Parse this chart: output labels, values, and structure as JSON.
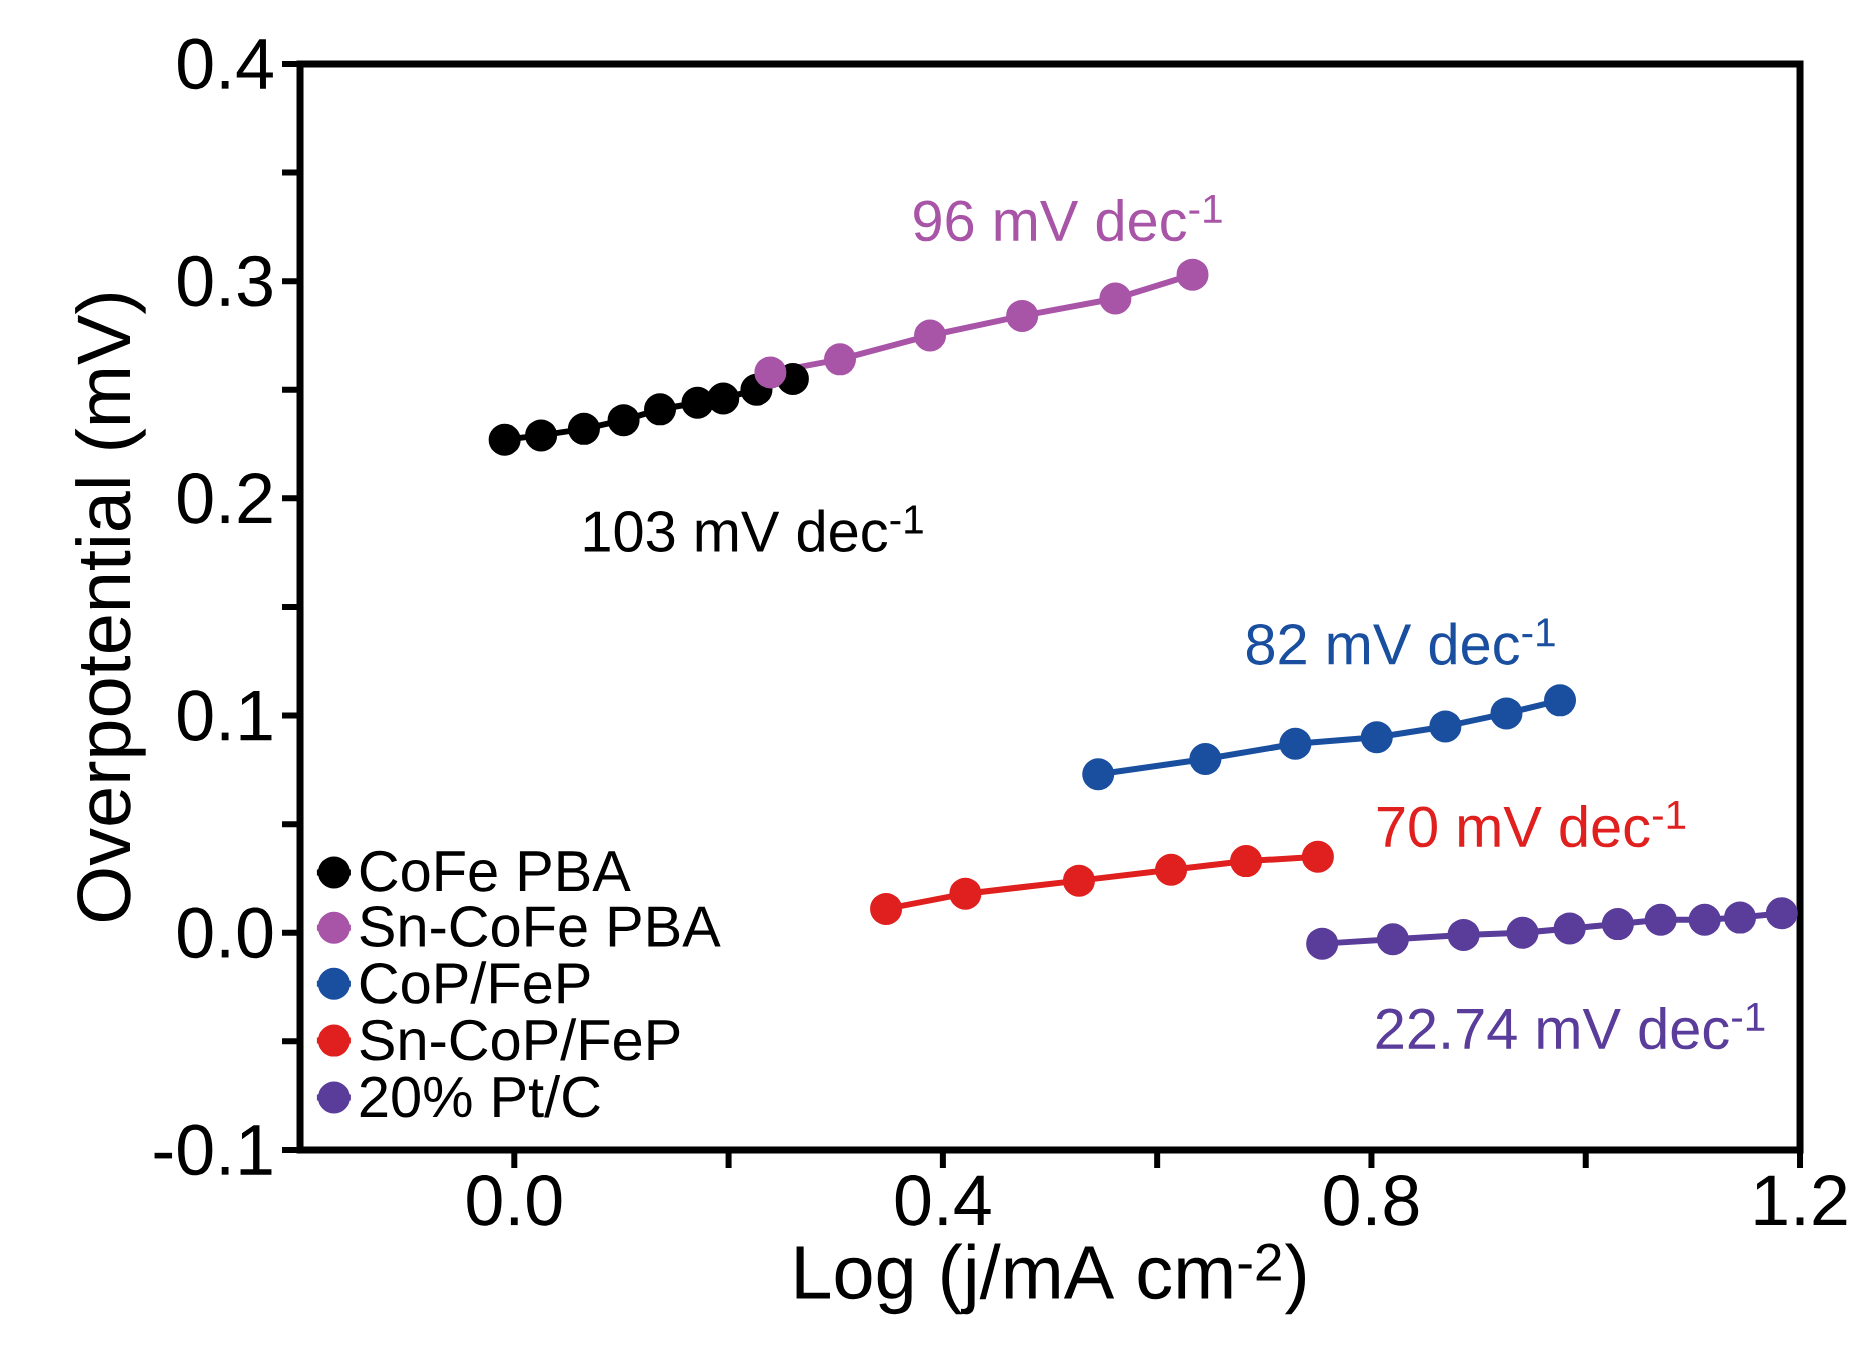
{
  "chart_data": {
    "type": "line",
    "xlabel": "Log (j/mA cm$^{-2}$)",
    "ylabel": "Overpotential (mV)",
    "xlim": [
      -0.2,
      1.2
    ],
    "ylim": [
      -0.1,
      0.4
    ],
    "xticks": [
      {
        "value": 0,
        "label": "0.0"
      },
      {
        "value": 0.2,
        "label": null
      },
      {
        "value": 0.4,
        "label": "0.4"
      },
      {
        "value": 0.6,
        "label": null
      },
      {
        "value": 0.8,
        "label": "0.8"
      },
      {
        "value": 1.0,
        "label": null
      },
      {
        "value": 1.2,
        "label": "1.2"
      }
    ],
    "yticks": [
      {
        "value": -0.1,
        "label": "-0.1"
      },
      {
        "value": -0.05,
        "label": null
      },
      {
        "value": 0,
        "label": "0.0"
      },
      {
        "value": 0.05,
        "label": null
      },
      {
        "value": 0.1,
        "label": "0.1"
      },
      {
        "value": 0.15,
        "label": null
      },
      {
        "value": 0.2,
        "label": "0.2"
      },
      {
        "value": 0.25,
        "label": null
      },
      {
        "value": 0.3,
        "label": "0.3"
      },
      {
        "value": 0.35,
        "label": null
      },
      {
        "value": 0.4,
        "label": "0.4"
      }
    ],
    "grid": false,
    "legend": "bottom left",
    "marker": "circle",
    "line_style": "solid",
    "series": [
      {
        "name": "CoFe PBA",
        "color": "#000000",
        "x": [
          -0.009,
          0.025,
          0.065,
          0.102,
          0.136,
          0.171,
          0.195,
          0.226,
          0.26
        ],
        "values": [
          0.227,
          0.229,
          0.232,
          0.236,
          0.241,
          0.244,
          0.246,
          0.25,
          0.255
        ]
      },
      {
        "name": "Sn-CoFe PBA",
        "color": "#a855a8",
        "x": [
          0.239,
          0.304,
          0.388,
          0.474,
          0.561,
          0.633
        ],
        "values": [
          0.258,
          0.264,
          0.275,
          0.284,
          0.292,
          0.303
        ]
      },
      {
        "name": "CoP/FeP",
        "color": "#1a4fa0",
        "x": [
          0.545,
          0.645,
          0.729,
          0.805,
          0.869,
          0.926,
          0.976
        ],
        "values": [
          0.073,
          0.08,
          0.087,
          0.09,
          0.095,
          0.101,
          0.107
        ]
      },
      {
        "name": "Sn-CoP/FeP",
        "color": "#e0201e",
        "x": [
          0.347,
          0.421,
          0.527,
          0.613,
          0.683,
          0.75
        ],
        "values": [
          0.011,
          0.018,
          0.024,
          0.029,
          0.033,
          0.035
        ]
      },
      {
        "name": "20% Pt/C",
        "color": "#5a3d9a",
        "x": [
          0.754,
          0.82,
          0.886,
          0.941,
          0.985,
          1.03,
          1.07,
          1.111,
          1.144,
          1.183
        ],
        "values": [
          -0.005,
          -0.003,
          -0.001,
          0.0,
          0.002,
          0.004,
          0.006,
          0.006,
          0.007,
          0.009
        ]
      }
    ],
    "annotations": [
      "103 mV dec$^{-1}$",
      "96 mV dec$^{-1}$",
      "82 mV dec$^{-1}$",
      "70 mV dec$^{-1}$",
      "22.74 mV dec$^{-1}$"
    ]
  }
}
